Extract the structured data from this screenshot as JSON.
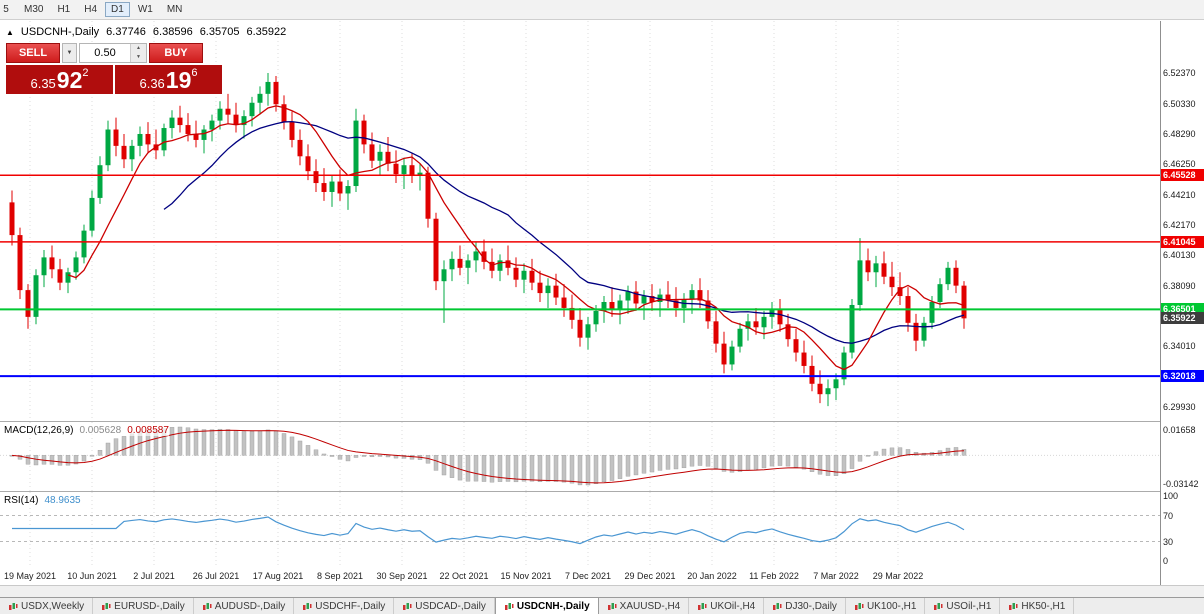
{
  "toolbar": {
    "timeframes": [
      {
        "label": "5",
        "active": false
      },
      {
        "label": "M30",
        "active": false
      },
      {
        "label": "H1",
        "active": false
      },
      {
        "label": "H4",
        "active": false
      },
      {
        "label": "D1",
        "active": true
      },
      {
        "label": "W1",
        "active": false
      },
      {
        "label": "MN",
        "active": false
      }
    ]
  },
  "icons": {
    "caret_down": "▼",
    "spin_up": "▲",
    "spin_down": "▼",
    "chart_title_icon": "▲"
  },
  "chart": {
    "title_icon": "▲",
    "symbol_title": "USDCNH-,Daily",
    "ohlc": {
      "open": "6.37746",
      "high": "6.38596",
      "low": "6.35705",
      "close": "6.35922"
    },
    "trade_panel": {
      "sell_label": "SELL",
      "buy_label": "BUY",
      "volume": "0.50",
      "bid": {
        "prefix": "6.35",
        "big": "92",
        "sup": "2"
      },
      "ask": {
        "prefix": "6.36",
        "big": "19",
        "sup": "6"
      }
    },
    "scale": {
      "price_max": 6.5563,
      "price_min": 6.294
    },
    "price_axis": {
      "labels": [
        "6.52370",
        "6.50330",
        "6.48290",
        "6.46250",
        "6.44210",
        "6.42170",
        "6.40130",
        "6.38090",
        "6.36050",
        "6.34010",
        "6.31970",
        "6.29930"
      ]
    },
    "levels": [
      {
        "label": "6.45528",
        "price": 6.45528,
        "color": "#f00000",
        "width": 1.5
      },
      {
        "label": "6.41045",
        "price": 6.41045,
        "color": "#f00000",
        "width": 1.5
      },
      {
        "label": "6.36501",
        "price": 6.36501,
        "color": "#00c832",
        "width": 2
      },
      {
        "label": "6.32018",
        "price": 6.32018,
        "color": "#0000ff",
        "width": 2
      }
    ],
    "current_price": {
      "label": "6.35922",
      "price": 6.35922,
      "color": "#3d3d3d"
    },
    "date_axis": {
      "labels": [
        "19 May 2021",
        "10 Jun 2021",
        "2 Jul 2021",
        "26 Jul 2021",
        "17 Aug 2021",
        "8 Sep 2021",
        "30 Sep 2021",
        "22 Oct 2021",
        "15 Nov 2021",
        "7 Dec 2021",
        "29 Dec 2021",
        "20 Jan 2022",
        "11 Feb 2022",
        "7 Mar 2022",
        "29 Mar 2022"
      ]
    }
  },
  "macd_panel": {
    "label": "MACD(12,26,9)",
    "value1": "0.005628",
    "value2": "0.008587",
    "axis_max": "0.01658",
    "axis_min": "-0.03142"
  },
  "rsi_panel": {
    "label": "RSI(14)",
    "value": "48.9635",
    "axis": [
      "100",
      "70",
      "30",
      "0"
    ],
    "levels": [
      70,
      30
    ]
  },
  "tabbar": {
    "icon": "candlestick-chart-icon",
    "tabs": [
      {
        "label": "USDX,Weekly",
        "active": false
      },
      {
        "label": "EURUSD-,Daily",
        "active": false
      },
      {
        "label": "AUDUSD-,Daily",
        "active": false
      },
      {
        "label": "USDCHF-,Daily",
        "active": false
      },
      {
        "label": "USDCAD-,Daily",
        "active": false
      },
      {
        "label": "USDCNH-,Daily",
        "active": true
      },
      {
        "label": "XAUUSD-,H4",
        "active": false
      },
      {
        "label": "UKOil-,H4",
        "active": false
      },
      {
        "label": "DJ30-,Daily",
        "active": false
      },
      {
        "label": "UK100-,H1",
        "active": false
      },
      {
        "label": "USOil-,H1",
        "active": false
      },
      {
        "label": "HK50-,H1",
        "active": false
      }
    ]
  },
  "chart_data": {
    "type": "candlestick",
    "symbol": "USDCNH-",
    "timeframe": "Daily",
    "up_color": "#00a843",
    "down_color": "#e00000",
    "ma_fast_color": "#cc0000",
    "ma_slow_color": "#000080",
    "candles": [
      [
        6.437,
        6.445,
        6.408,
        6.415
      ],
      [
        6.415,
        6.42,
        6.372,
        6.378
      ],
      [
        6.378,
        6.382,
        6.352,
        6.36
      ],
      [
        6.36,
        6.392,
        6.355,
        6.388
      ],
      [
        6.388,
        6.405,
        6.38,
        6.4
      ],
      [
        6.4,
        6.408,
        6.386,
        6.392
      ],
      [
        6.392,
        6.399,
        6.378,
        6.383
      ],
      [
        6.383,
        6.393,
        6.376,
        6.39
      ],
      [
        6.39,
        6.404,
        6.385,
        6.4
      ],
      [
        6.4,
        6.422,
        6.396,
        6.418
      ],
      [
        6.418,
        6.445,
        6.414,
        6.44
      ],
      [
        6.44,
        6.468,
        6.436,
        6.462
      ],
      [
        6.462,
        6.492,
        6.458,
        6.486
      ],
      [
        6.486,
        6.494,
        6.468,
        6.475
      ],
      [
        6.475,
        6.483,
        6.46,
        6.466
      ],
      [
        6.466,
        6.479,
        6.458,
        6.475
      ],
      [
        6.475,
        6.488,
        6.468,
        6.483
      ],
      [
        6.483,
        6.491,
        6.47,
        6.476
      ],
      [
        6.476,
        6.486,
        6.466,
        6.472
      ],
      [
        6.472,
        6.49,
        6.468,
        6.487
      ],
      [
        6.487,
        6.499,
        6.48,
        6.494
      ],
      [
        6.494,
        6.502,
        6.484,
        6.489
      ],
      [
        6.489,
        6.497,
        6.478,
        6.483
      ],
      [
        6.483,
        6.492,
        6.474,
        6.479
      ],
      [
        6.479,
        6.489,
        6.47,
        6.486
      ],
      [
        6.486,
        6.496,
        6.478,
        6.492
      ],
      [
        6.492,
        6.505,
        6.486,
        6.5
      ],
      [
        6.5,
        6.51,
        6.49,
        6.496
      ],
      [
        6.496,
        6.504,
        6.484,
        6.489
      ],
      [
        6.489,
        6.499,
        6.48,
        6.495
      ],
      [
        6.495,
        6.508,
        6.488,
        6.504
      ],
      [
        6.504,
        6.515,
        6.496,
        6.51
      ],
      [
        6.51,
        6.524,
        6.502,
        6.518
      ],
      [
        6.518,
        6.522,
        6.498,
        6.503
      ],
      [
        6.503,
        6.509,
        6.486,
        6.491
      ],
      [
        6.491,
        6.498,
        6.474,
        6.479
      ],
      [
        6.479,
        6.486,
        6.462,
        6.468
      ],
      [
        6.468,
        6.476,
        6.452,
        6.458
      ],
      [
        6.458,
        6.466,
        6.444,
        6.45
      ],
      [
        6.45,
        6.46,
        6.438,
        6.444
      ],
      [
        6.444,
        6.455,
        6.434,
        6.451
      ],
      [
        6.451,
        6.459,
        6.438,
        6.443
      ],
      [
        6.443,
        6.452,
        6.432,
        6.448
      ],
      [
        6.448,
        6.5,
        6.444,
        6.492
      ],
      [
        6.492,
        6.496,
        6.47,
        6.476
      ],
      [
        6.476,
        6.484,
        6.46,
        6.465
      ],
      [
        6.465,
        6.476,
        6.455,
        6.471
      ],
      [
        6.471,
        6.481,
        6.458,
        6.463
      ],
      [
        6.463,
        6.472,
        6.45,
        6.456
      ],
      [
        6.456,
        6.467,
        6.446,
        6.462
      ],
      [
        6.462,
        6.47,
        6.45,
        6.455
      ],
      [
        6.455,
        6.463,
        6.445,
        6.457
      ],
      [
        6.457,
        6.461,
        6.42,
        6.426
      ],
      [
        6.426,
        6.43,
        6.378,
        6.384
      ],
      [
        6.384,
        6.398,
        6.356,
        6.392
      ],
      [
        6.392,
        6.404,
        6.384,
        6.399
      ],
      [
        6.399,
        6.408,
        6.388,
        6.393
      ],
      [
        6.393,
        6.402,
        6.382,
        6.398
      ],
      [
        6.398,
        6.41,
        6.39,
        6.404
      ],
      [
        6.404,
        6.412,
        6.392,
        6.397
      ],
      [
        6.397,
        6.406,
        6.386,
        6.391
      ],
      [
        6.391,
        6.402,
        6.384,
        6.398
      ],
      [
        6.398,
        6.408,
        6.388,
        6.393
      ],
      [
        6.393,
        6.4,
        6.38,
        6.385
      ],
      [
        6.385,
        6.396,
        6.376,
        6.391
      ],
      [
        6.391,
        6.399,
        6.378,
        6.383
      ],
      [
        6.383,
        6.391,
        6.37,
        6.376
      ],
      [
        6.376,
        6.386,
        6.366,
        6.381
      ],
      [
        6.381,
        6.389,
        6.368,
        6.373
      ],
      [
        6.373,
        6.382,
        6.36,
        6.366
      ],
      [
        6.366,
        6.375,
        6.352,
        6.358
      ],
      [
        6.358,
        6.366,
        6.34,
        6.346
      ],
      [
        6.346,
        6.36,
        6.338,
        6.355
      ],
      [
        6.355,
        6.368,
        6.35,
        6.364
      ],
      [
        6.364,
        6.374,
        6.356,
        6.37
      ],
      [
        6.37,
        6.38,
        6.36,
        6.365
      ],
      [
        6.365,
        6.375,
        6.355,
        6.371
      ],
      [
        6.371,
        6.381,
        6.362,
        6.377
      ],
      [
        6.377,
        6.384,
        6.364,
        6.369
      ],
      [
        6.369,
        6.378,
        6.358,
        6.374
      ],
      [
        6.374,
        6.382,
        6.364,
        6.37
      ],
      [
        6.37,
        6.379,
        6.36,
        6.375
      ],
      [
        6.375,
        6.384,
        6.366,
        6.371
      ],
      [
        6.371,
        6.38,
        6.36,
        6.366
      ],
      [
        6.366,
        6.376,
        6.356,
        6.372
      ],
      [
        6.372,
        6.382,
        6.362,
        6.378
      ],
      [
        6.378,
        6.386,
        6.366,
        6.371
      ],
      [
        6.371,
        6.378,
        6.352,
        6.357
      ],
      [
        6.357,
        6.364,
        6.336,
        6.342
      ],
      [
        6.342,
        6.35,
        6.322,
        6.328
      ],
      [
        6.328,
        6.344,
        6.324,
        6.34
      ],
      [
        6.34,
        6.356,
        6.336,
        6.352
      ],
      [
        6.352,
        6.362,
        6.344,
        6.357
      ],
      [
        6.357,
        6.366,
        6.348,
        6.353
      ],
      [
        6.353,
        6.364,
        6.345,
        6.36
      ],
      [
        6.36,
        6.37,
        6.352,
        6.365
      ],
      [
        6.365,
        6.372,
        6.35,
        6.355
      ],
      [
        6.355,
        6.362,
        6.34,
        6.345
      ],
      [
        6.345,
        6.352,
        6.33,
        6.336
      ],
      [
        6.336,
        6.344,
        6.322,
        6.327
      ],
      [
        6.327,
        6.334,
        6.31,
        6.315
      ],
      [
        6.315,
        6.324,
        6.302,
        6.308
      ],
      [
        6.308,
        6.318,
        6.3,
        6.312
      ],
      [
        6.312,
        6.322,
        6.304,
        6.318
      ],
      [
        6.318,
        6.34,
        6.314,
        6.336
      ],
      [
        6.336,
        6.372,
        6.332,
        6.368
      ],
      [
        6.368,
        6.413,
        6.364,
        6.398
      ],
      [
        6.398,
        6.406,
        6.384,
        6.39
      ],
      [
        6.39,
        6.401,
        6.38,
        6.396
      ],
      [
        6.396,
        6.404,
        6.382,
        6.387
      ],
      [
        6.387,
        6.397,
        6.374,
        6.38
      ],
      [
        6.38,
        6.39,
        6.368,
        6.374
      ],
      [
        6.374,
        6.38,
        6.35,
        6.356
      ],
      [
        6.356,
        6.362,
        6.337,
        6.344
      ],
      [
        6.344,
        6.36,
        6.34,
        6.356
      ],
      [
        6.356,
        6.374,
        6.352,
        6.37
      ],
      [
        6.37,
        6.386,
        6.366,
        6.382
      ],
      [
        6.382,
        6.397,
        6.378,
        6.393
      ],
      [
        6.393,
        6.398,
        6.376,
        6.381
      ],
      [
        6.381,
        6.384,
        6.352,
        6.359
      ]
    ],
    "indicators": [
      {
        "name": "MACD",
        "params": "12,26,9",
        "values": [
          "0.005628",
          "0.008587"
        ],
        "axis": [
          "0.01658",
          "-0.03142"
        ]
      },
      {
        "name": "RSI",
        "params": "14",
        "value": "48.9635",
        "axis": [
          "100",
          "70",
          "30",
          "0"
        ],
        "levels": [
          70,
          30
        ]
      }
    ]
  }
}
